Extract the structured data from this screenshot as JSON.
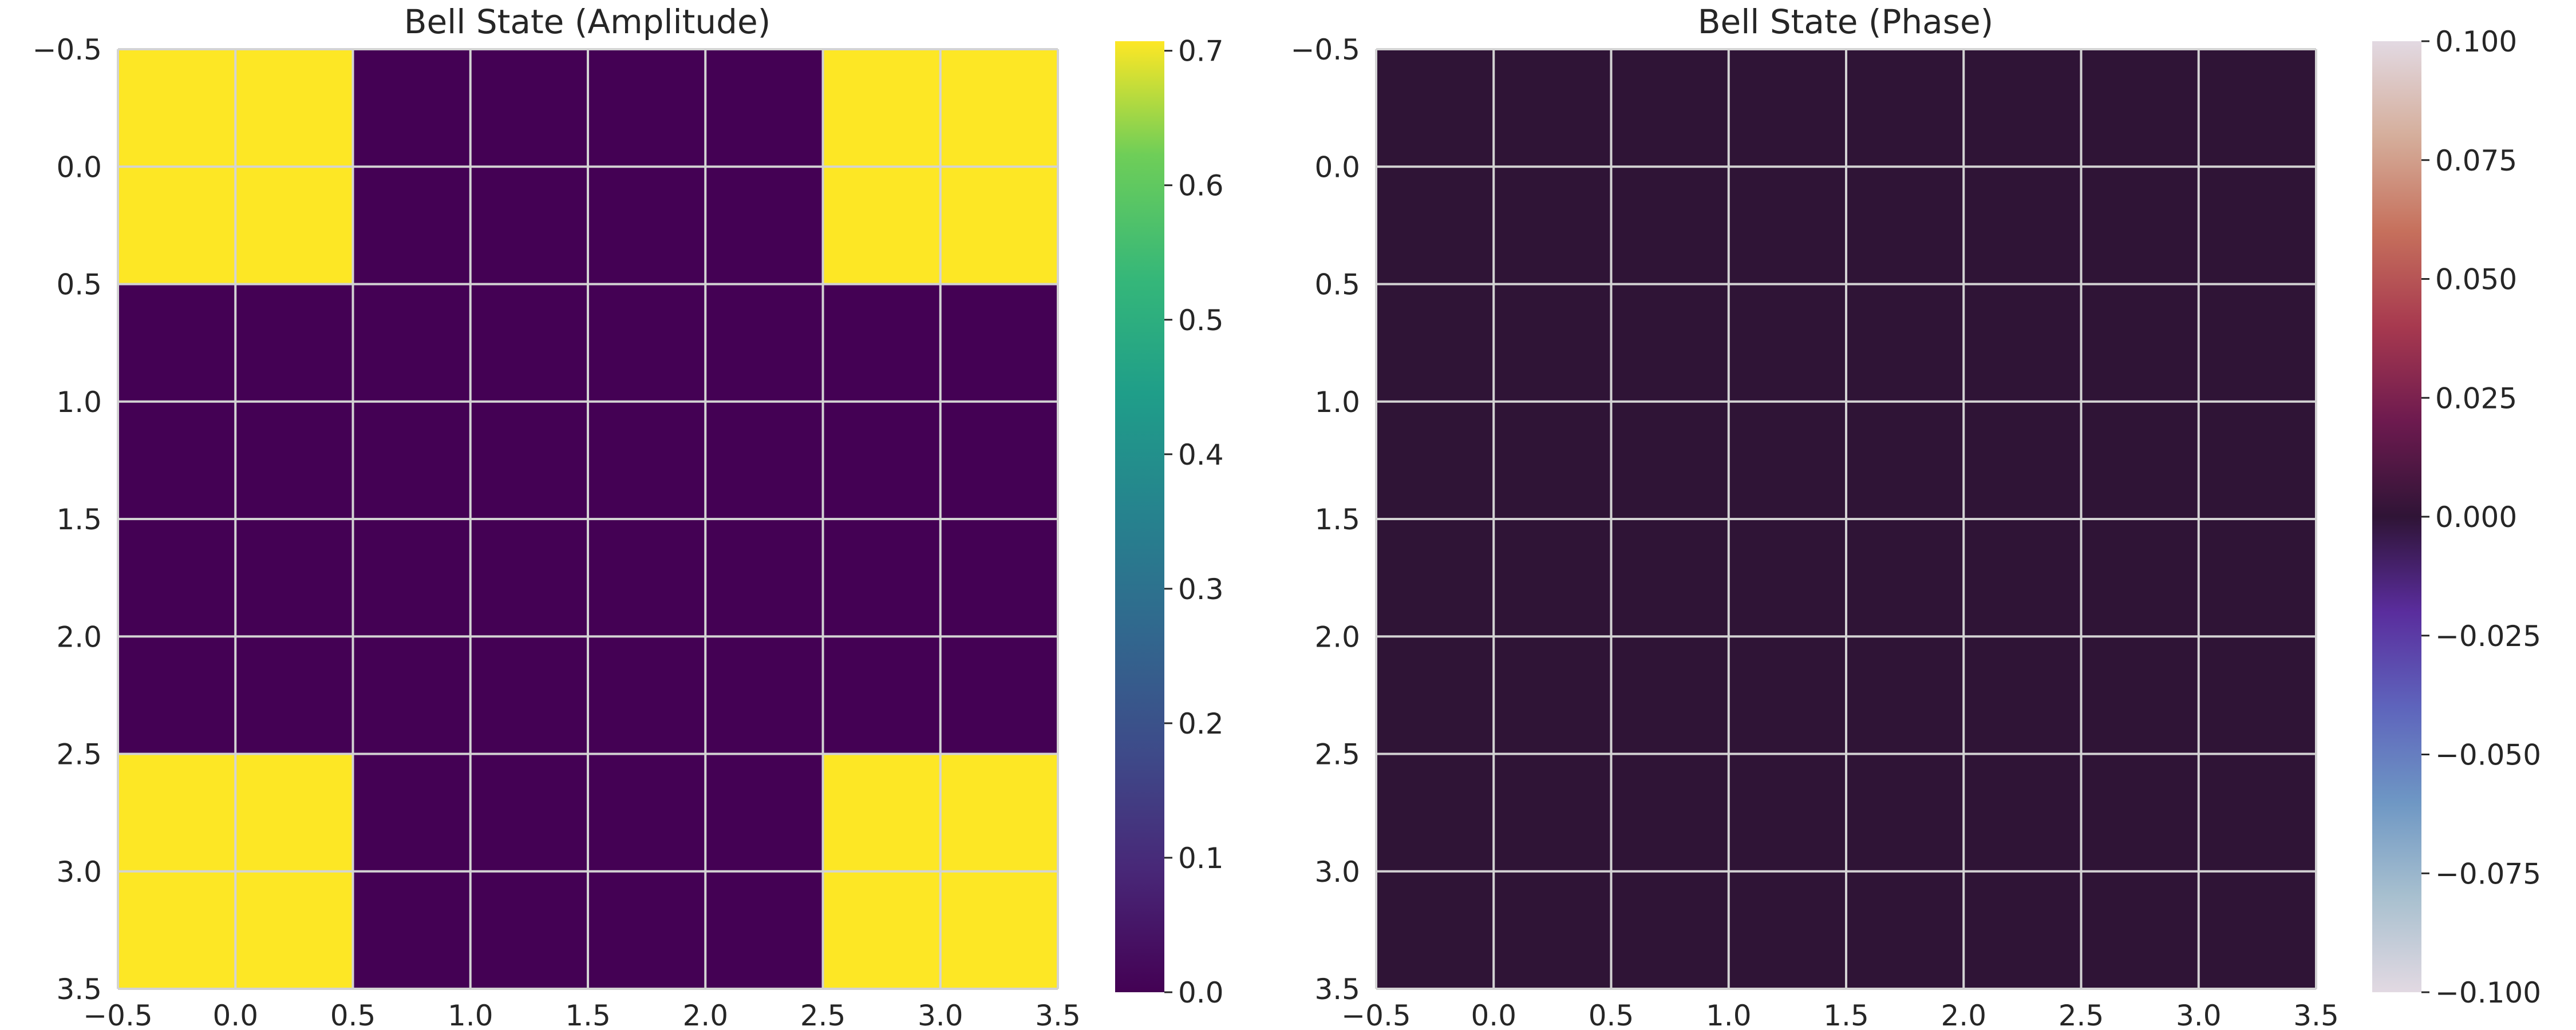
{
  "chart_data": [
    {
      "type": "heatmap",
      "title": "Bell State (Amplitude)",
      "xlabel": "",
      "ylabel": "",
      "matrix": [
        [
          0.7071,
          0,
          0,
          0.7071
        ],
        [
          0,
          0,
          0,
          0
        ],
        [
          0,
          0,
          0,
          0
        ],
        [
          0.7071,
          0,
          0,
          0.7071
        ]
      ],
      "xlim": [
        -0.5,
        3.5
      ],
      "ylim": [
        3.5,
        -0.5
      ],
      "x_ticks": [
        "−0.5",
        "0.0",
        "0.5",
        "1.0",
        "1.5",
        "2.0",
        "2.5",
        "3.0",
        "3.5"
      ],
      "y_ticks": [
        "−0.5",
        "0.0",
        "0.5",
        "1.0",
        "1.5",
        "2.0",
        "2.5",
        "3.0",
        "3.5"
      ],
      "colormap": "viridis",
      "colorbar_range": [
        0,
        0.7071
      ],
      "colorbar_ticks": [
        "0.0",
        "0.1",
        "0.2",
        "0.3",
        "0.4",
        "0.5",
        "0.6",
        "0.7"
      ],
      "colorbar_tick_values": [
        0,
        0.1,
        0.2,
        0.3,
        0.4,
        0.5,
        0.6,
        0.7
      ],
      "grid": true
    },
    {
      "type": "heatmap",
      "title": "Bell State (Phase)",
      "xlabel": "",
      "ylabel": "",
      "matrix": [
        [
          0,
          0,
          0,
          0
        ],
        [
          0,
          0,
          0,
          0
        ],
        [
          0,
          0,
          0,
          0
        ],
        [
          0,
          0,
          0,
          0
        ]
      ],
      "xlim": [
        -0.5,
        3.5
      ],
      "ylim": [
        3.5,
        -0.5
      ],
      "x_ticks": [
        "−0.5",
        "0.0",
        "0.5",
        "1.0",
        "1.5",
        "2.0",
        "2.5",
        "3.0",
        "3.5"
      ],
      "y_ticks": [
        "−0.5",
        "0.0",
        "0.5",
        "1.0",
        "1.5",
        "2.0",
        "2.5",
        "3.0",
        "3.5"
      ],
      "colormap": "twilight",
      "colorbar_range": [
        -0.1,
        0.1
      ],
      "colorbar_ticks": [
        "−0.100",
        "−0.075",
        "−0.050",
        "−0.025",
        "0.000",
        "0.025",
        "0.050",
        "0.075",
        "0.100"
      ],
      "colorbar_tick_values": [
        -0.1,
        -0.075,
        -0.05,
        -0.025,
        0,
        0.025,
        0.05,
        0.075,
        0.1
      ],
      "grid": true
    }
  ]
}
